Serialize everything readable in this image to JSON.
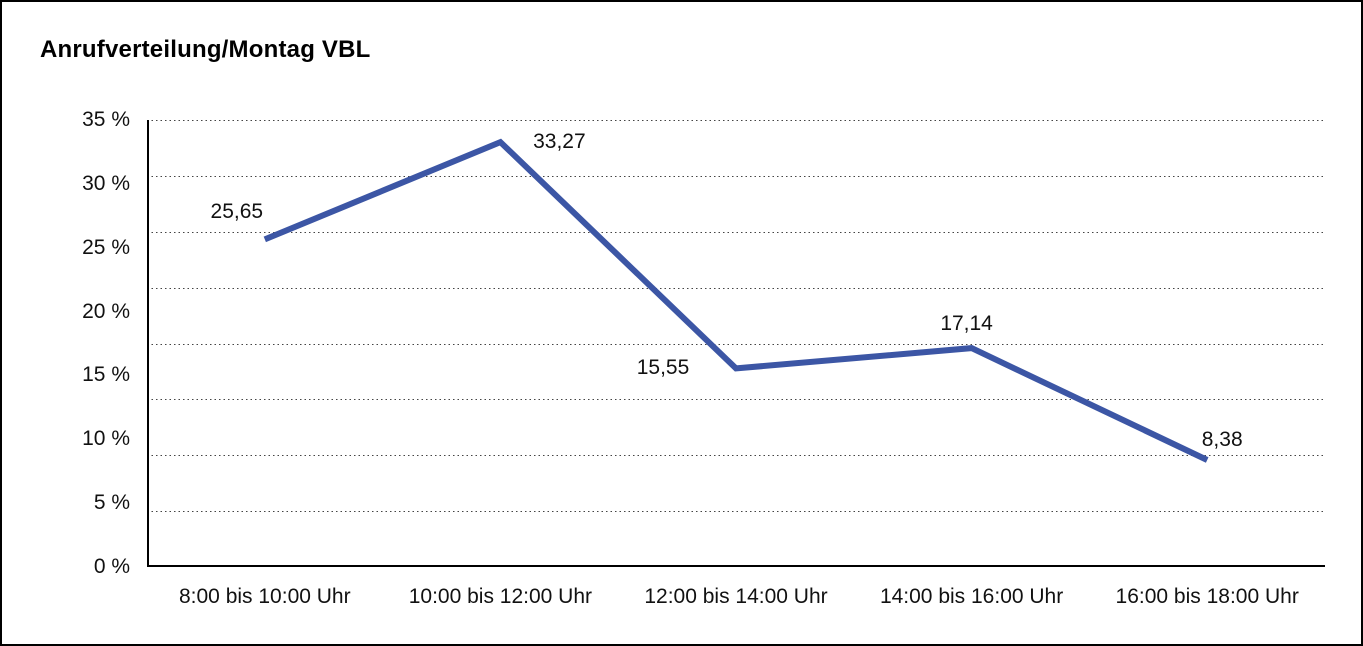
{
  "window": {
    "background": "#ffffff",
    "frame_color": "#000000"
  },
  "chart_data": {
    "type": "line",
    "title": "Anrufverteilung/Montag VBL",
    "categories": [
      "8:00 bis 10:00 Uhr",
      "10:00 bis 12:00 Uhr",
      "12:00 bis 14:00 Uhr",
      "14:00 bis 16:00 Uhr",
      "16:00 bis 18:00 Uhr"
    ],
    "series": [
      {
        "name": "",
        "values": [
          25.65,
          33.27,
          15.55,
          17.14,
          8.38
        ],
        "data_labels": [
          "25,65",
          "33,27",
          "15,55",
          "17,14",
          "8,38"
        ],
        "color": "#3C56A5"
      }
    ],
    "xlabel": "",
    "ylabel": "",
    "ylim": [
      0,
      35
    ],
    "ytick_step": 5,
    "ytick_labels_top_to_bottom": [
      "35 %",
      "30 %",
      "25 %",
      "20 %",
      "15 %",
      "10 %",
      "5 %",
      "0 %"
    ],
    "grid": "horizontal dotted",
    "dotted_gridline_count": 8,
    "legend_position": "none",
    "axis_color": "#000000",
    "gridline_color": "#444444",
    "plot_background": "#ffffff"
  }
}
